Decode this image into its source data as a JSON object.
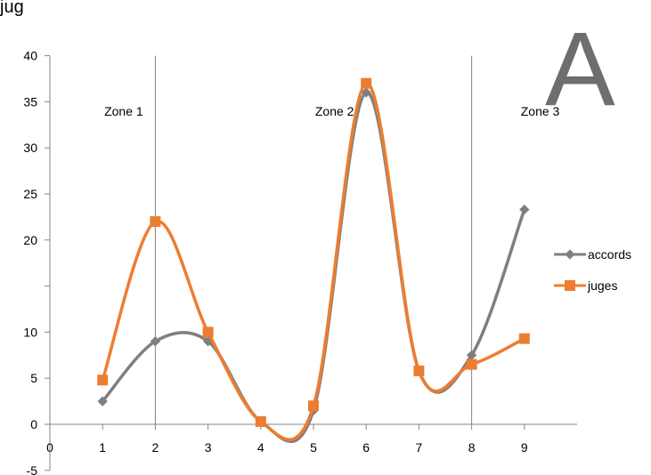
{
  "title_fragment": "jug",
  "panel_letter": "A",
  "chart_data": {
    "type": "line",
    "x": [
      1,
      2,
      3,
      4,
      5,
      6,
      7,
      8,
      9
    ],
    "xticks": [
      "0",
      "1",
      "2",
      "3",
      "4",
      "5",
      "6",
      "7",
      "8",
      "9"
    ],
    "yticks": [
      "-5",
      "0",
      "5",
      "10",
      "",
      "20",
      "25",
      "30",
      "35",
      "40"
    ],
    "xlim": [
      0,
      10
    ],
    "ylim": [
      -5,
      40
    ],
    "grid": "vertical lines at zone boundaries",
    "legend_position": "right",
    "zones": [
      {
        "label": "Zone 1",
        "x": 1.4
      },
      {
        "label": "Zone 2",
        "x": 5.4
      },
      {
        "label": "Zone 3",
        "x": 9.3
      }
    ],
    "zone_boundaries": [
      2,
      8
    ],
    "series": [
      {
        "name": "accords",
        "color": "#7f7f7f",
        "marker": "diamond",
        "values": [
          2.5,
          9,
          9,
          0.3,
          1.5,
          36,
          5.8,
          7.5,
          23.3
        ]
      },
      {
        "name": "juges",
        "color": "#ed7d31",
        "marker": "square",
        "values": [
          4.8,
          22,
          10,
          0.3,
          2,
          37,
          5.8,
          6.5,
          9.3
        ]
      }
    ]
  }
}
